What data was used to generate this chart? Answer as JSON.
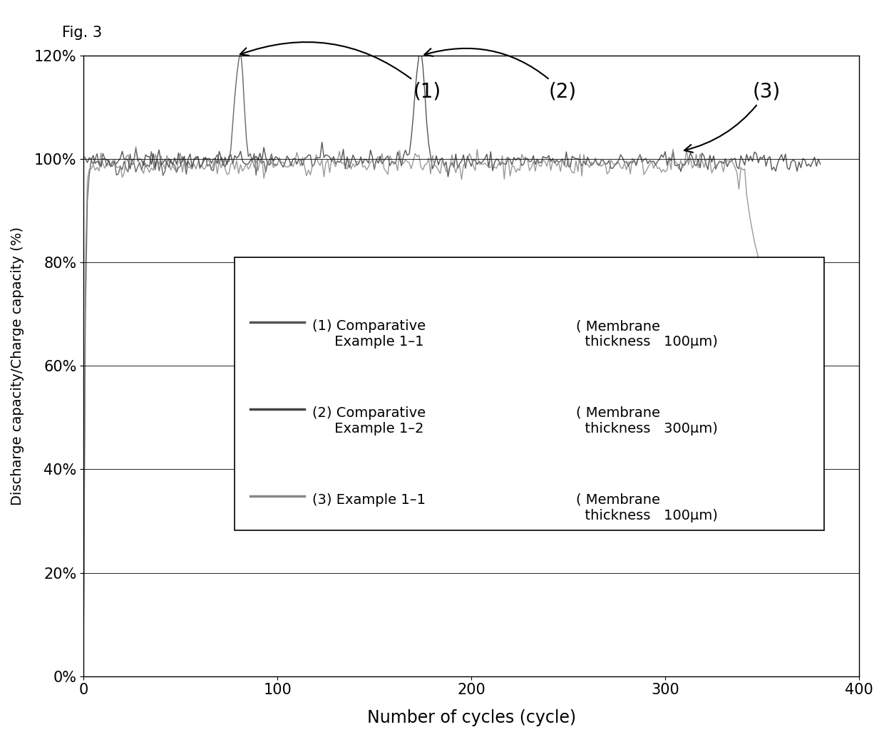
{
  "title": "Fig. 3",
  "xlabel": "Number of cycles (cycle)",
  "ylabel": "Discharge capacity/Charge capacity (%)",
  "xlim": [
    0,
    400
  ],
  "ylim": [
    0,
    120
  ],
  "yticks": [
    0,
    20,
    40,
    60,
    80,
    100,
    120
  ],
  "ytick_labels": [
    "0%",
    "20%",
    "40%",
    "60%",
    "80%",
    "100%",
    "120%"
  ],
  "xticks": [
    0,
    100,
    200,
    300,
    400
  ],
  "background_color": "#ffffff",
  "line1_color": "#555555",
  "line2_color": "#444444",
  "line3_color": "#888888",
  "annotation1_text": "(1)",
  "annotation2_text": "(2)",
  "annotation3_text": "(3)"
}
